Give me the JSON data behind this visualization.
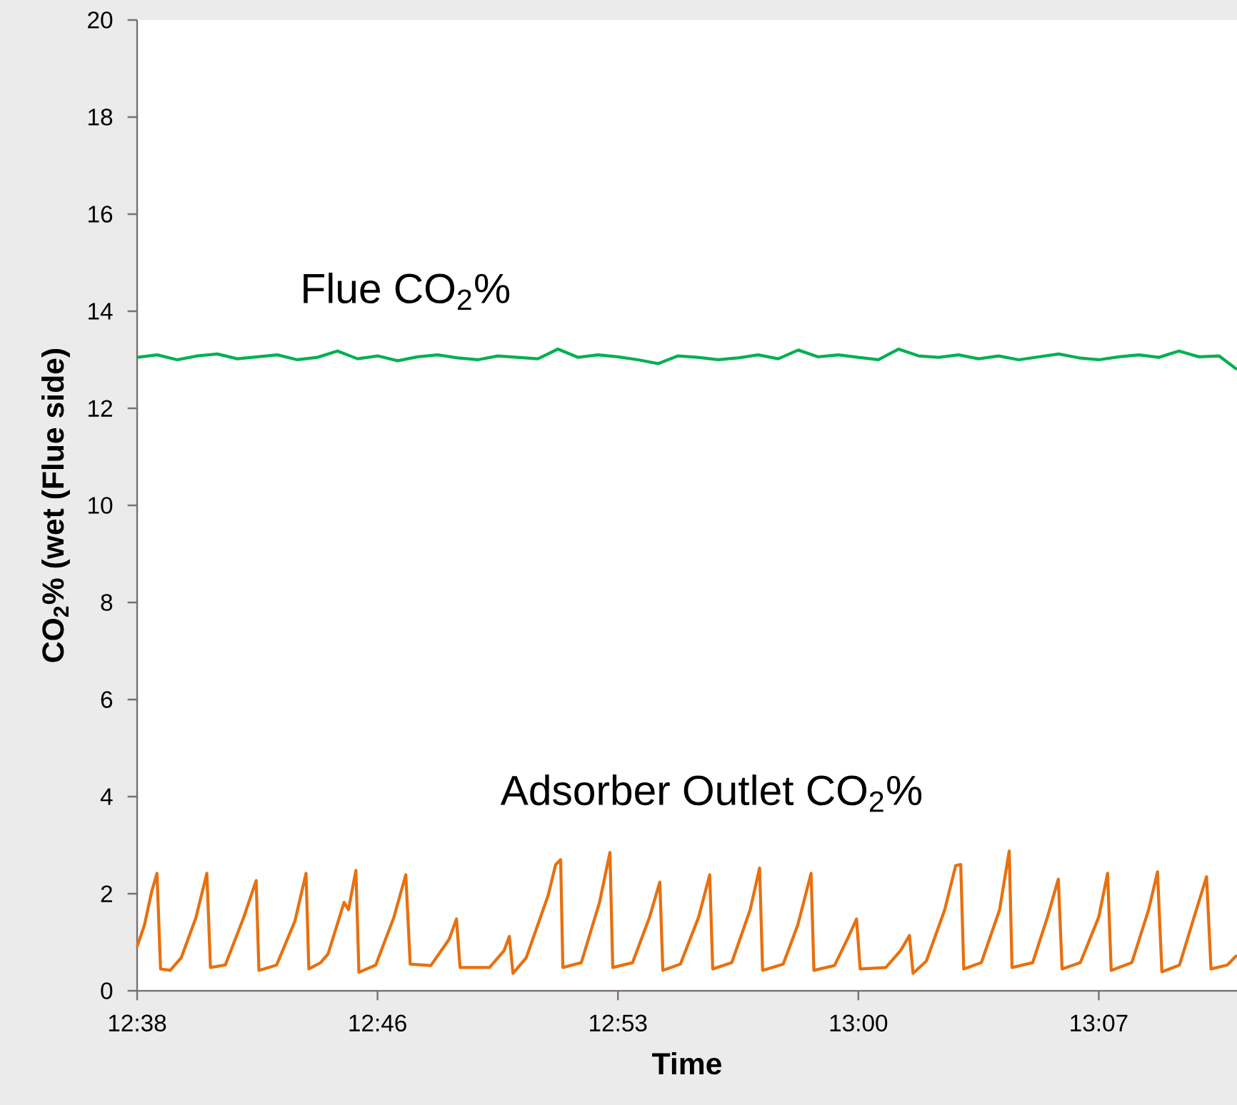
{
  "chart_data": {
    "type": "line",
    "xlabel": "Time",
    "ylabel": "CO$_{2}$% (wet (Flue side)",
    "xlim": [
      12.64,
      13.189
    ],
    "ylim": [
      0,
      20
    ],
    "xticks": [
      {
        "value": 12.64,
        "label": "12:38"
      },
      {
        "value": 12.76,
        "label": "12:46"
      },
      {
        "value": 12.88,
        "label": "12:53"
      },
      {
        "value": 13.0,
        "label": "13:00"
      },
      {
        "value": 13.12,
        "label": "13:07"
      }
    ],
    "yticks": [
      0,
      2,
      4,
      6,
      8,
      10,
      12,
      14,
      16,
      18,
      20
    ],
    "grid": false,
    "legend": false,
    "marker": "none",
    "line_style": "solid",
    "series": [
      {
        "name": "Flue CO$_{2}$%",
        "color": "#00b050",
        "x": [
          12.64,
          12.65,
          12.66,
          12.67,
          12.68,
          12.69,
          12.7,
          12.71,
          12.72,
          12.73,
          12.74,
          12.75,
          12.76,
          12.77,
          12.78,
          12.79,
          12.8,
          12.81,
          12.82,
          12.83,
          12.84,
          12.85,
          12.86,
          12.87,
          12.88,
          12.89,
          12.9,
          12.91,
          12.92,
          12.93,
          12.94,
          12.95,
          12.96,
          12.97,
          12.98,
          12.99,
          13.0,
          13.01,
          13.02,
          13.03,
          13.04,
          13.05,
          13.06,
          13.07,
          13.08,
          13.09,
          13.1,
          13.11,
          13.12,
          13.13,
          13.14,
          13.15,
          13.16,
          13.17,
          13.18,
          13.189
        ],
        "values": [
          13.05,
          13.1,
          13.0,
          13.08,
          13.12,
          13.02,
          13.06,
          13.1,
          13.0,
          13.05,
          13.18,
          13.02,
          13.08,
          12.98,
          13.06,
          13.1,
          13.04,
          13.0,
          13.08,
          13.05,
          13.02,
          13.22,
          13.05,
          13.1,
          13.06,
          13.0,
          12.92,
          13.08,
          13.05,
          13.0,
          13.04,
          13.1,
          13.02,
          13.2,
          13.06,
          13.1,
          13.05,
          13.0,
          13.22,
          13.08,
          13.05,
          13.1,
          13.02,
          13.08,
          13.0,
          13.06,
          13.12,
          13.04,
          13.0,
          13.06,
          13.1,
          13.05,
          13.18,
          13.06,
          13.08,
          12.8
        ]
      },
      {
        "name": "Adsorber Outlet CO$_{2}$%",
        "color": "#e8700f",
        "x": [
          12.64,
          12.6437,
          12.6473,
          12.6499,
          12.6517,
          12.6565,
          12.662,
          12.6693,
          12.6748,
          12.6766,
          12.684,
          12.6931,
          12.6994,
          12.7008,
          12.7096,
          12.7188,
          12.7243,
          12.7257,
          12.7316,
          12.7353,
          12.7433,
          12.7455,
          12.7492,
          12.7507,
          12.7591,
          12.7682,
          12.7741,
          12.7763,
          12.7866,
          12.7957,
          12.7994,
          12.8012,
          12.8159,
          12.8232,
          12.8258,
          12.8276,
          12.8342,
          12.8452,
          12.8489,
          12.8514,
          12.8525,
          12.8617,
          12.8708,
          12.876,
          12.8774,
          12.8873,
          12.8958,
          12.9009,
          12.9024,
          12.9112,
          12.9203,
          12.9258,
          12.9273,
          12.9368,
          12.946,
          12.9507,
          12.9522,
          12.9625,
          12.9698,
          12.9764,
          12.9778,
          12.9881,
          12.9954,
          12.9991,
          13.0009,
          13.0137,
          13.0211,
          13.0255,
          13.0273,
          13.0339,
          13.0431,
          13.0486,
          13.0511,
          13.0526,
          13.0614,
          13.0705,
          13.0753,
          13.0767,
          13.087,
          13.0944,
          13.0998,
          13.1017,
          13.1108,
          13.12,
          13.1244,
          13.1262,
          13.1365,
          13.1449,
          13.1493,
          13.1515,
          13.1603,
          13.1676,
          13.1738,
          13.176,
          13.1841,
          13.1889
        ],
        "values": [
          0.91,
          1.36,
          2.05,
          2.42,
          0.45,
          0.42,
          0.68,
          1.5,
          2.42,
          0.48,
          0.53,
          1.5,
          2.27,
          0.42,
          0.53,
          1.44,
          2.42,
          0.45,
          0.58,
          0.76,
          1.82,
          1.67,
          2.48,
          0.38,
          0.53,
          1.52,
          2.39,
          0.55,
          0.52,
          1.06,
          1.48,
          0.48,
          0.48,
          0.83,
          1.12,
          0.36,
          0.68,
          1.97,
          2.6,
          2.7,
          0.48,
          0.58,
          1.82,
          2.85,
          0.48,
          0.58,
          1.52,
          2.24,
          0.42,
          0.55,
          1.52,
          2.39,
          0.45,
          0.58,
          1.67,
          2.53,
          0.42,
          0.55,
          1.36,
          2.42,
          0.42,
          0.52,
          1.14,
          1.48,
          0.45,
          0.48,
          0.83,
          1.14,
          0.36,
          0.61,
          1.67,
          2.58,
          2.6,
          0.45,
          0.58,
          1.67,
          2.88,
          0.48,
          0.58,
          1.52,
          2.3,
          0.45,
          0.58,
          1.52,
          2.42,
          0.42,
          0.58,
          1.67,
          2.45,
          0.39,
          0.53,
          1.52,
          2.35,
          0.45,
          0.53,
          0.73
        ]
      }
    ]
  }
}
